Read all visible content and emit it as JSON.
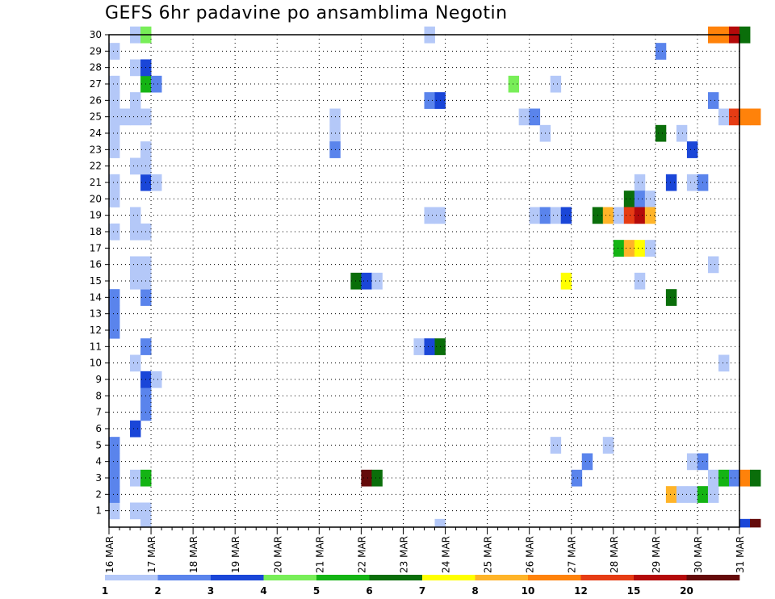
{
  "chart_data": {
    "type": "heatmap",
    "title": "GEFS 6hr padavine po ansamblima Negotin",
    "xlabel": "",
    "ylabel": "",
    "x_ticks": [
      "16 MAR",
      "17 MAR",
      "18 MAR",
      "19 MAR",
      "20 MAR",
      "21 MAR",
      "22 MAR",
      "23 MAR",
      "24 MAR",
      "25 MAR",
      "26 MAR",
      "27 MAR",
      "28 MAR",
      "29 MAR",
      "30 MAR",
      "31 MAR"
    ],
    "y_ticks": [
      1,
      2,
      3,
      4,
      5,
      6,
      7,
      8,
      9,
      10,
      11,
      12,
      13,
      14,
      15,
      16,
      17,
      18,
      19,
      20,
      21,
      22,
      23,
      24,
      25,
      26,
      27,
      28,
      29,
      30
    ],
    "xlim_days": [
      16,
      31
    ],
    "ylim": [
      0,
      30
    ],
    "steps_per_day": 4,
    "grid": true,
    "colorbar": {
      "labels": [
        "1",
        "2",
        "3",
        "4",
        "5",
        "6",
        "7",
        "8",
        "10",
        "12",
        "15",
        "20"
      ],
      "colors": [
        "#b4c8f8",
        "#5a84ec",
        "#1a46d8",
        "#78ee58",
        "#14b414",
        "#0a6e0a",
        "#ffff00",
        "#ffb428",
        "#ff820a",
        "#e63c14",
        "#b40a0a",
        "#640a0a"
      ]
    },
    "cells": [
      [
        0,
        1,
        0
      ],
      [
        0,
        2,
        1
      ],
      [
        0,
        3,
        1
      ],
      [
        0,
        4,
        1
      ],
      [
        0,
        5,
        1
      ],
      [
        0,
        12,
        1
      ],
      [
        0,
        13,
        1
      ],
      [
        0,
        14,
        1
      ],
      [
        0,
        18,
        0
      ],
      [
        0,
        20,
        0
      ],
      [
        0,
        21,
        0
      ],
      [
        0,
        23,
        0
      ],
      [
        0,
        24,
        0
      ],
      [
        0,
        25,
        0
      ],
      [
        0,
        26,
        0
      ],
      [
        0,
        27,
        0
      ],
      [
        0,
        29,
        0
      ],
      [
        1,
        25,
        0
      ],
      [
        2,
        1,
        0
      ],
      [
        2,
        3,
        0
      ],
      [
        2,
        6,
        2
      ],
      [
        2,
        10,
        0
      ],
      [
        2,
        15,
        0
      ],
      [
        2,
        16,
        0
      ],
      [
        2,
        18,
        0
      ],
      [
        2,
        19,
        0
      ],
      [
        2,
        22,
        0
      ],
      [
        2,
        25,
        0
      ],
      [
        2,
        26,
        0
      ],
      [
        2,
        28,
        0
      ],
      [
        2,
        30,
        0
      ],
      [
        3,
        0,
        0
      ],
      [
        3,
        1,
        0
      ],
      [
        3,
        3,
        4
      ],
      [
        3,
        7,
        1
      ],
      [
        3,
        8,
        1
      ],
      [
        3,
        9,
        2
      ],
      [
        3,
        11,
        1
      ],
      [
        3,
        14,
        1
      ],
      [
        3,
        15,
        0
      ],
      [
        3,
        16,
        0
      ],
      [
        3,
        18,
        0
      ],
      [
        3,
        21,
        2
      ],
      [
        3,
        22,
        0
      ],
      [
        3,
        23,
        0
      ],
      [
        3,
        25,
        0
      ],
      [
        3,
        27,
        4
      ],
      [
        3,
        28,
        2
      ],
      [
        3,
        30,
        3
      ],
      [
        4,
        9,
        0
      ],
      [
        4,
        21,
        0
      ],
      [
        4,
        27,
        1
      ],
      [
        21,
        24,
        0
      ],
      [
        21,
        25,
        0
      ],
      [
        21,
        23,
        1
      ],
      [
        23,
        15,
        5
      ],
      [
        24,
        15,
        2
      ],
      [
        24,
        3,
        11
      ],
      [
        25,
        15,
        0
      ],
      [
        25,
        3,
        5
      ],
      [
        29,
        11,
        0
      ],
      [
        30,
        11,
        2
      ],
      [
        30,
        26,
        1
      ],
      [
        30,
        19,
        0
      ],
      [
        30,
        30,
        0
      ],
      [
        31,
        11,
        5
      ],
      [
        31,
        26,
        2
      ],
      [
        31,
        19,
        0
      ],
      [
        31,
        0,
        0
      ],
      [
        38,
        27,
        3
      ],
      [
        39,
        25,
        0
      ],
      [
        40,
        25,
        1
      ],
      [
        40,
        19,
        0
      ],
      [
        41,
        24,
        0
      ],
      [
        41,
        19,
        1
      ],
      [
        42,
        27,
        0
      ],
      [
        42,
        5,
        0
      ],
      [
        42,
        19,
        0
      ],
      [
        43,
        19,
        2
      ],
      [
        43,
        15,
        6
      ],
      [
        44,
        3,
        1
      ],
      [
        45,
        4,
        1
      ],
      [
        46,
        19,
        5
      ],
      [
        47,
        19,
        7
      ],
      [
        47,
        5,
        0
      ],
      [
        48,
        17,
        4
      ],
      [
        48,
        19,
        0
      ],
      [
        49,
        20,
        5
      ],
      [
        49,
        19,
        9
      ],
      [
        49,
        17,
        7
      ],
      [
        50,
        21,
        0
      ],
      [
        50,
        20,
        1
      ],
      [
        50,
        19,
        10
      ],
      [
        50,
        17,
        6
      ],
      [
        50,
        15,
        0
      ],
      [
        51,
        20,
        0
      ],
      [
        51,
        19,
        7
      ],
      [
        51,
        17,
        0
      ],
      [
        52,
        24,
        5
      ],
      [
        52,
        29,
        1
      ],
      [
        53,
        21,
        2
      ],
      [
        53,
        14,
        5
      ],
      [
        53,
        2,
        7
      ],
      [
        54,
        24,
        0
      ],
      [
        54,
        2,
        0
      ],
      [
        55,
        23,
        2
      ],
      [
        55,
        21,
        0
      ],
      [
        55,
        4,
        0
      ],
      [
        55,
        2,
        0
      ],
      [
        56,
        21,
        1
      ],
      [
        56,
        4,
        1
      ],
      [
        56,
        2,
        4
      ],
      [
        57,
        26,
        1
      ],
      [
        57,
        16,
        0
      ],
      [
        57,
        3,
        0
      ],
      [
        57,
        2,
        0
      ],
      [
        57,
        30,
        8
      ],
      [
        58,
        25,
        0
      ],
      [
        58,
        10,
        0
      ],
      [
        58,
        3,
        4
      ],
      [
        58,
        30,
        8
      ],
      [
        59,
        25,
        9
      ],
      [
        59,
        3,
        1
      ],
      [
        59,
        30,
        10
      ],
      [
        60,
        25,
        8
      ],
      [
        60,
        3,
        8
      ],
      [
        60,
        0,
        2
      ],
      [
        60,
        30,
        5
      ],
      [
        61,
        25,
        8
      ],
      [
        61,
        3,
        5
      ],
      [
        61,
        0,
        11
      ]
    ]
  }
}
